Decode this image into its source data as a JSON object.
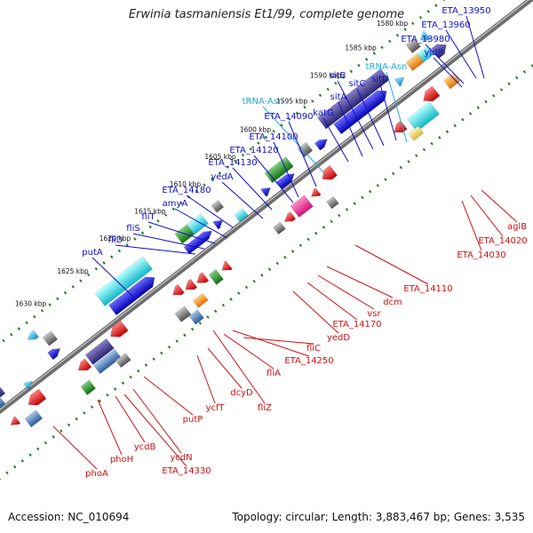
{
  "title": "Erwinia tasmaniensis Et1/99, complete genome",
  "footer": {
    "accession": "Accession: NC_010694",
    "summary": "Topology: circular; Length: 3,883,467 bp; Genes: 3,535"
  },
  "colors": {
    "forward_label": "#1010c8",
    "reverse_label": "#d01010",
    "trna_label": "#22aadd",
    "backbone": "#777777"
  },
  "ticks": [
    "1580 kbp",
    "1585 kbp",
    "1590 kbp",
    "1595 kbp",
    "1600 kbp",
    "1605 kbp",
    "1610 kbp",
    "1615 kbp",
    "1620 kbp",
    "1625 kbp",
    "1630 kbp"
  ],
  "forward_labels": [
    "ETA_13950",
    "ETA_13960",
    "ETA_13980",
    "yidP",
    "tRNA-Asn",
    "sitD",
    "sitC",
    "sitB",
    "sitA",
    "katG",
    "tRNA-Asn",
    "ETA_14090",
    "ETA_14100",
    "ETA_14120",
    "ETA_14130",
    "yedA",
    "ETA_14180",
    "amyA",
    "fliT",
    "fliS",
    "fliD",
    "putA"
  ],
  "reverse_labels": [
    "aglB",
    "ETA_14020",
    "ETA_14030",
    "ETA_14110",
    "dcm",
    "vsr",
    "ETA_14170",
    "yedD",
    "fliC",
    "ETA_14250",
    "fliA",
    "fliZ",
    "dcyD",
    "ycfT",
    "putP",
    "ycdN",
    "ETA_14330",
    "ycdB",
    "phoH",
    "phoA"
  ]
}
